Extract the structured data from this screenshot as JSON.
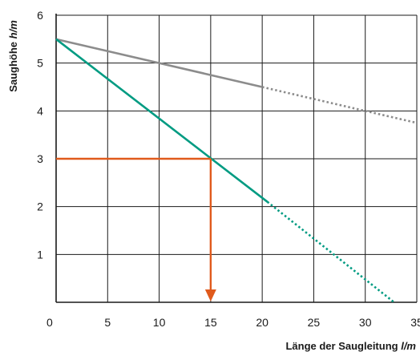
{
  "chart_data": {
    "type": "line",
    "xlabel": "Länge der Saugleitung",
    "xlabel_unit": "l/m",
    "ylabel": "Saughöhe",
    "ylabel_unit": "h/m",
    "xlim": [
      0,
      35
    ],
    "ylim": [
      0,
      6
    ],
    "xticks": [
      0,
      5,
      10,
      15,
      20,
      25,
      30,
      35
    ],
    "yticks": [
      1,
      2,
      3,
      4,
      5,
      6
    ],
    "grid": true,
    "colors": {
      "grid": "#1a1a1a",
      "series_gray": "#8c8c8c",
      "series_green": "#009b82",
      "marker": "#e05a1c"
    },
    "series": [
      {
        "color": "#8c8c8c",
        "solid": {
          "x": [
            0,
            20
          ],
          "y": [
            5.5,
            4.5
          ]
        },
        "dotted": {
          "x": [
            20,
            35
          ],
          "y": [
            4.5,
            3.75
          ]
        }
      },
      {
        "color": "#009b82",
        "solid": {
          "x": [
            0,
            20.5
          ],
          "y": [
            5.5,
            2.1
          ]
        },
        "dotted": {
          "x": [
            20.5,
            32.8
          ],
          "y": [
            2.1,
            0
          ]
        }
      }
    ],
    "annotations": [
      {
        "type": "reading-guide",
        "from_y": 3,
        "to_x": 15,
        "arrow_to_y": 0,
        "color": "#e05a1c"
      }
    ]
  }
}
